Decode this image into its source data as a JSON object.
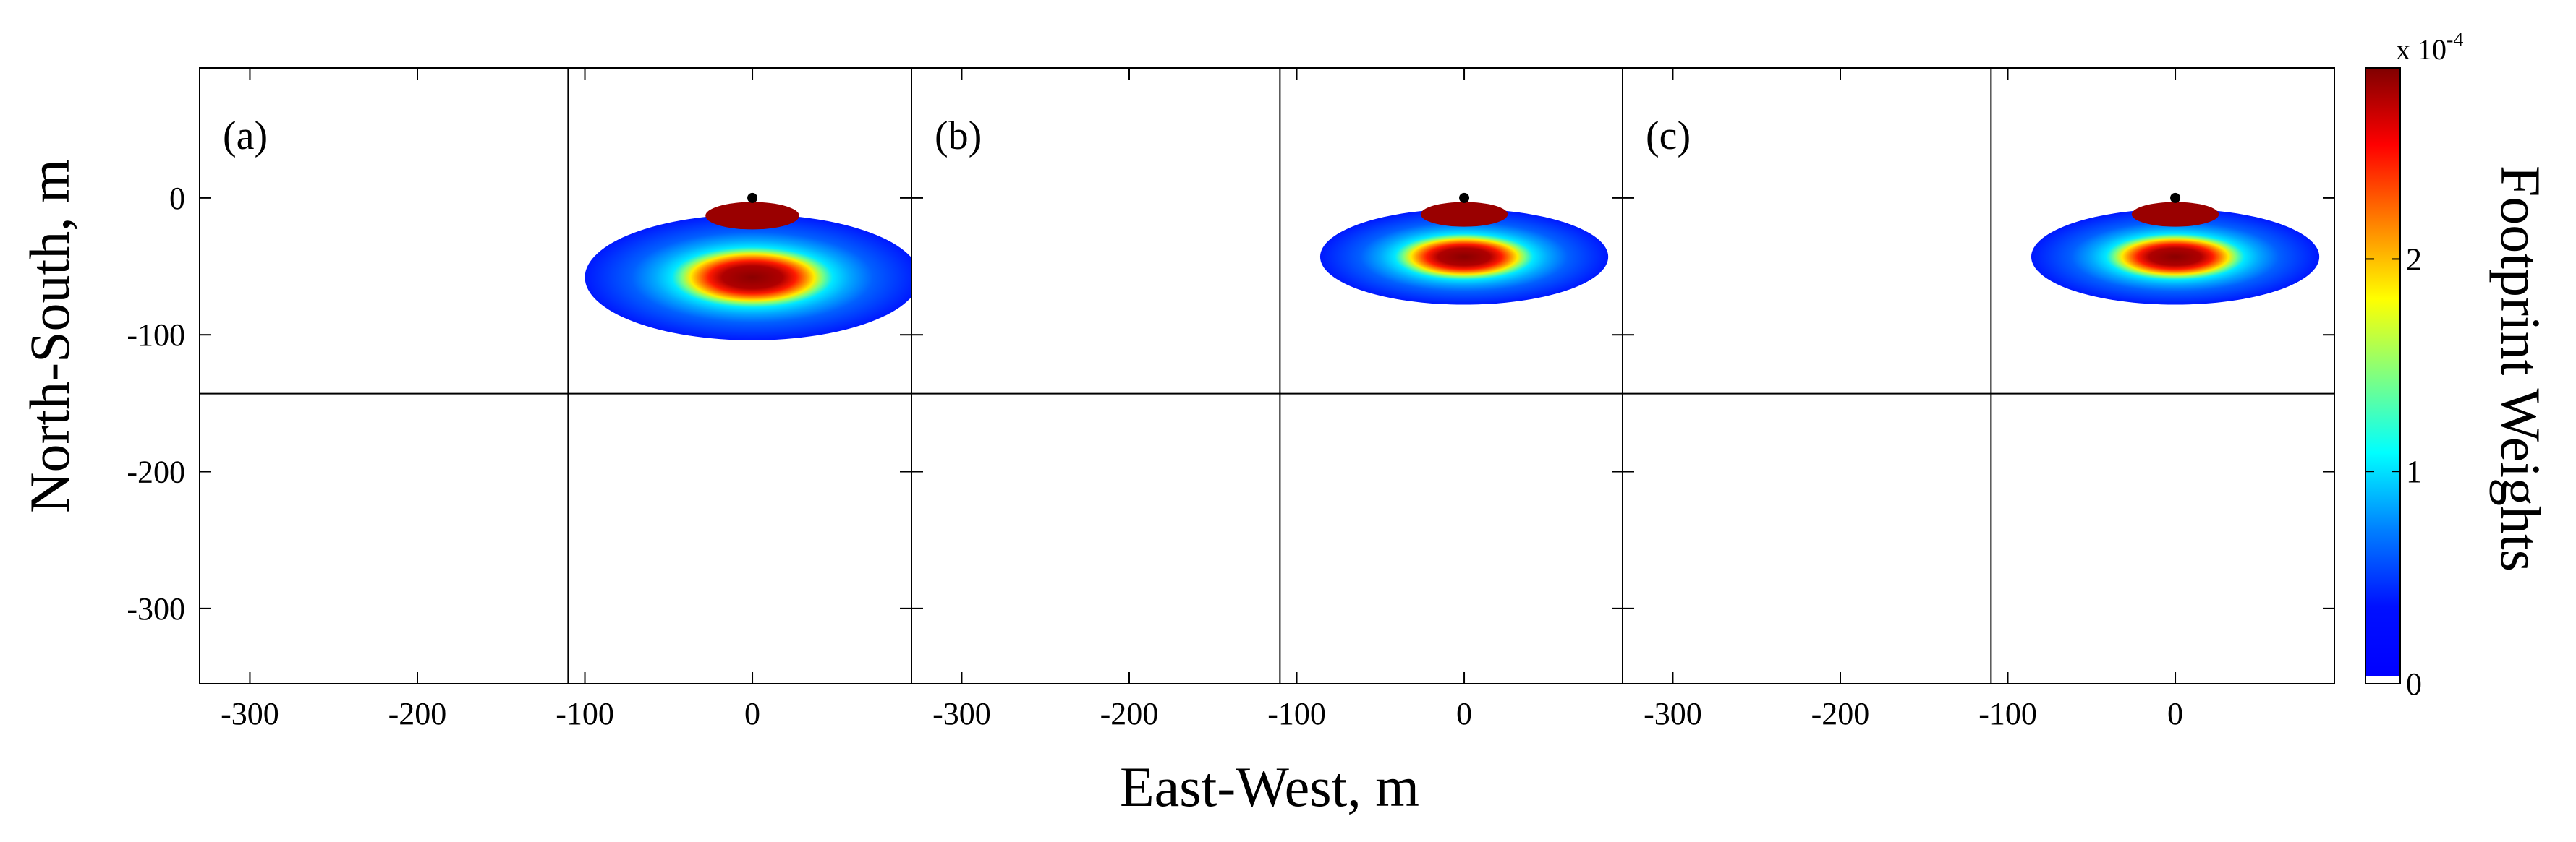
{
  "chart_data": {
    "type": "heatmap",
    "ylabel": "North-South, m",
    "xlabel": "East-West, m",
    "xlim": [
      -330,
      95
    ],
    "ylim": [
      -355,
      95
    ],
    "xticks": [
      -300,
      -200,
      -100,
      0
    ],
    "xtick_labels": [
      "-300",
      "-200",
      "-100",
      "0"
    ],
    "yticks": [
      0,
      -100,
      -200,
      -300
    ],
    "ytick_labels": [
      "0",
      "-100",
      "-200",
      "-300"
    ],
    "grid_lines": {
      "x": -110,
      "y": -143
    },
    "tower": {
      "x": 0,
      "y": 0
    },
    "panels": [
      {
        "label": "(a)",
        "footprint": {
          "center_x": 0,
          "center_y": -58,
          "radius_x": 100,
          "radius_y": 46,
          "core_center_y": -13,
          "core_radius_x": 28,
          "core_radius_y": 10
        }
      },
      {
        "label": "(b)",
        "footprint": {
          "center_x": 0,
          "center_y": -43,
          "radius_x": 86,
          "radius_y": 35,
          "core_center_y": -12,
          "core_radius_x": 26,
          "core_radius_y": 9
        }
      },
      {
        "label": "(c)",
        "footprint": {
          "center_x": 0,
          "center_y": -43,
          "radius_x": 86,
          "radius_y": 35,
          "core_center_y": -12,
          "core_radius_x": 26,
          "core_radius_y": 9
        }
      }
    ],
    "colorbar": {
      "label": "Footprint Weights",
      "multiplier_base": "x 10",
      "multiplier_exponent": "-4",
      "range": [
        0,
        2.9
      ],
      "ticks": [
        0,
        1,
        2
      ],
      "tick_labels": [
        "0",
        "1",
        "2"
      ],
      "colormap": "jet"
    }
  }
}
